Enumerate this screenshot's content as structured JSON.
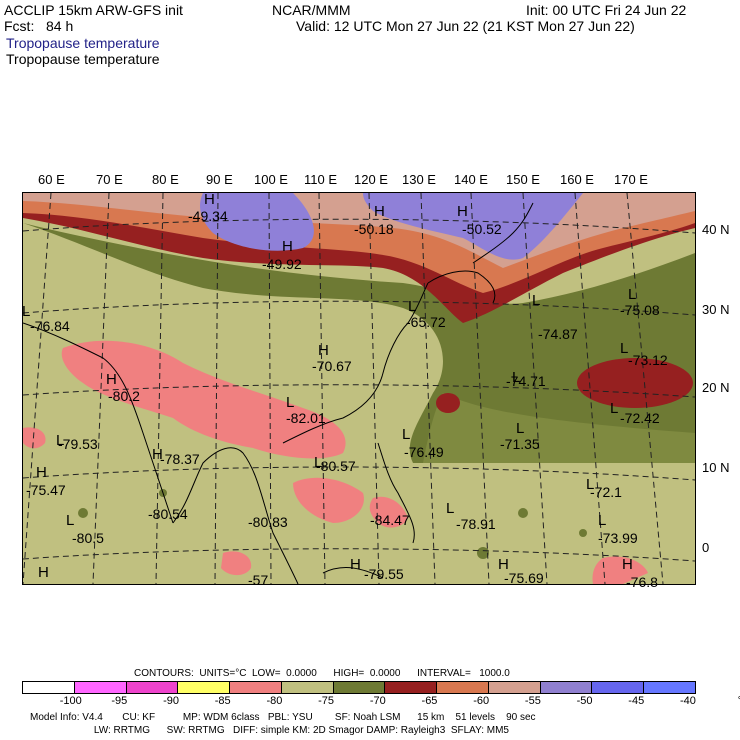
{
  "header": {
    "line1_left": "ACCLIP 15km ARW-GFS init",
    "line1_center": "NCAR/MMM",
    "line1_right": "Init: 00 UTC Fri 24 Jun 22",
    "line2_left": "Fcst:   84 h",
    "line2_right": "Valid: 12 UTC Mon 27 Jun 22 (21 KST Mon 27 Jun 22)",
    "field_title_1": "Tropopause temperature",
    "field_title_2": "Tropopause temperature"
  },
  "lon_labels": [
    "60 E",
    "70 E",
    "80 E",
    "90 E",
    "100 E",
    "110 E",
    "120 E",
    "130 E",
    "140 E",
    "150 E",
    "160 E",
    "170 E"
  ],
  "lat_labels": [
    "40 N",
    "30 N",
    "20 N",
    "10 N",
    "0"
  ],
  "map_labels": [
    {
      "t": "H"
    },
    {
      "t": "-49.34"
    },
    {
      "t": "H"
    },
    {
      "t": "-49.92"
    },
    {
      "t": "H"
    },
    {
      "t": "-50.18"
    },
    {
      "t": "H"
    },
    {
      "t": "-50.52"
    },
    {
      "t": "L"
    },
    {
      "t": "-76.84"
    },
    {
      "t": "L"
    },
    {
      "t": "-65.72"
    },
    {
      "t": "L"
    },
    {
      "t": "-74.87"
    },
    {
      "t": "L"
    },
    {
      "t": "-75.08"
    },
    {
      "t": "H"
    },
    {
      "t": "-70.67"
    },
    {
      "t": "L"
    },
    {
      "t": "-73.12"
    },
    {
      "t": "H"
    },
    {
      "t": "-80.2"
    },
    {
      "t": "L"
    },
    {
      "t": "-74.71"
    },
    {
      "t": "L"
    },
    {
      "t": "-82.01"
    },
    {
      "t": "L"
    },
    {
      "t": "-72.42"
    },
    {
      "t": "L"
    },
    {
      "t": "-79.53"
    },
    {
      "t": "L"
    },
    {
      "t": "-76.49"
    },
    {
      "t": "L"
    },
    {
      "t": "-71.35"
    },
    {
      "t": "H"
    },
    {
      "t": "-78.37"
    },
    {
      "t": "L"
    },
    {
      "t": "-80.57"
    },
    {
      "t": "H"
    },
    {
      "t": "-75.47"
    },
    {
      "t": "L"
    },
    {
      "t": "-72.1"
    },
    {
      "t": "-80.54"
    },
    {
      "t": "-80.83"
    },
    {
      "t": "-84.47"
    },
    {
      "t": "L"
    },
    {
      "t": "-78.91"
    },
    {
      "t": "L"
    },
    {
      "t": "-80.5"
    },
    {
      "t": "L"
    },
    {
      "t": "-73.99"
    },
    {
      "t": "H"
    },
    {
      "t": "-79.55"
    },
    {
      "t": "H"
    },
    {
      "t": "-75.69"
    },
    {
      "t": "H"
    },
    {
      "t": "-76.8"
    },
    {
      "t": "H"
    },
    {
      "t": "-57"
    }
  ],
  "contours_line": "CONTOURS:  UNITS=°C  LOW=  0.0000      HIGH=  0.0000      INTERVAL=   1000.0",
  "colorbar": {
    "colors": [
      "#ffffff",
      "#ff66ff",
      "#ee44cc",
      "#ffff66",
      "#f08080",
      "#c0c080",
      "#6e7a34",
      "#962020",
      "#d87850",
      "#d4a090",
      "#9080d0",
      "#6666ee",
      "#6677ff"
    ],
    "ticks": [
      "-100",
      "-95",
      "-90",
      "-85",
      "-80",
      "-75",
      "-70",
      "-65",
      "-60",
      "-55",
      "-50",
      "-45",
      "-40",
      "°C"
    ]
  },
  "model_info_1": "Model Info: V4.4       CU: KF          MP: WDM 6class   PBL: YSU        SF: Noah LSM      15 km    51 levels    90 sec",
  "model_info_2": "                       LW: RRTMG      SW: RRTMG   DIFF: simple KM: 2D Smagor DAMP: Rayleigh3  SFLAY: MM5"
}
